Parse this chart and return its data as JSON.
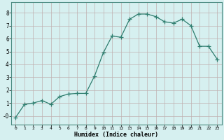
{
  "x": [
    0,
    1,
    2,
    3,
    4,
    5,
    6,
    7,
    8,
    9,
    10,
    11,
    12,
    13,
    14,
    15,
    16,
    17,
    18,
    19,
    20,
    21,
    22,
    23
  ],
  "y": [
    -0.1,
    0.9,
    1.0,
    1.2,
    0.9,
    1.5,
    1.7,
    1.75,
    1.75,
    3.1,
    4.9,
    6.2,
    6.1,
    7.5,
    7.9,
    7.9,
    7.7,
    7.3,
    7.2,
    7.5,
    7.0,
    5.4,
    5.4,
    4.4
  ],
  "line_color": "#2e7d6e",
  "marker": "D",
  "marker_size": 2.0,
  "bg_color": "#d6f0f0",
  "grid_color": "#c0b0b0",
  "xlabel": "Humidex (Indice chaleur)",
  "xlim": [
    -0.5,
    23.5
  ],
  "ylim": [
    -0.65,
    8.8
  ],
  "yticks": [
    0,
    1,
    2,
    3,
    4,
    5,
    6,
    7,
    8
  ],
  "ytick_labels": [
    "-0",
    "1",
    "2",
    "3",
    "4",
    "5",
    "6",
    "7",
    "8"
  ],
  "xticks": [
    0,
    1,
    2,
    3,
    4,
    5,
    6,
    7,
    8,
    9,
    10,
    11,
    12,
    13,
    14,
    15,
    16,
    17,
    18,
    19,
    20,
    21,
    22,
    23
  ]
}
